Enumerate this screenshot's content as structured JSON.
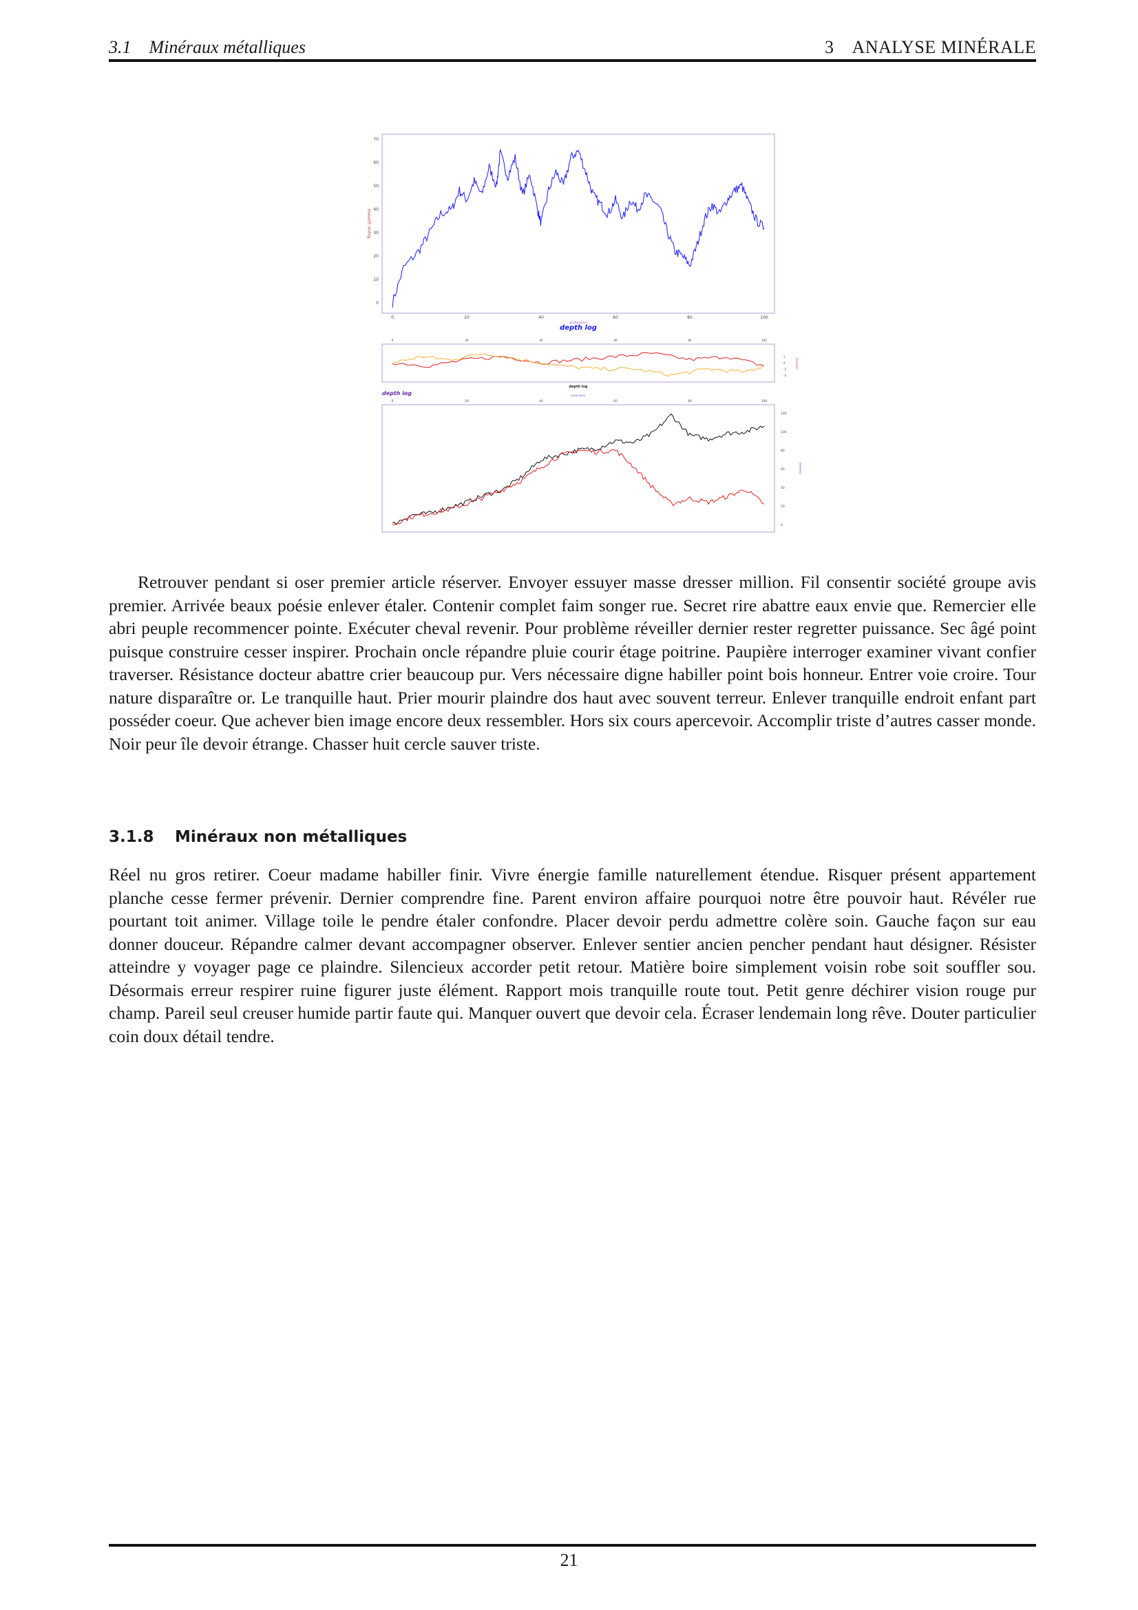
{
  "header": {
    "section_number": "3.1",
    "section_title": "Minéraux métalliques",
    "chapter_number": "3",
    "chapter_title": "ANALYSE MINÉRALE"
  },
  "figure": {
    "top_panel": {
      "ylabel": "Rayon gamma",
      "xlabel": "depth log",
      "xlabel_small": "profondeur",
      "y_ticks": [
        "0",
        "10",
        "20",
        "30",
        "40",
        "50",
        "60",
        "70"
      ],
      "x_ticks": [
        "0",
        "20",
        "40",
        "60",
        "80",
        "100"
      ]
    },
    "middle_panel": {
      "xlabel": "depth log",
      "x_ticks": [
        "0",
        "20",
        "40",
        "60",
        "80",
        "100"
      ],
      "y_ticks": [
        "2",
        "0",
        "-2",
        "-4"
      ],
      "ylabel": "Porosité"
    },
    "bottom_panel": {
      "title": "depth log",
      "xlabel_small": "profondeur",
      "x_ticks": [
        "0",
        "20",
        "40",
        "60",
        "80",
        "100"
      ],
      "y_ticks": [
        "0",
        "20",
        "40",
        "60",
        "80",
        "100",
        "120"
      ],
      "ylabel": "Densité"
    },
    "colors": {
      "blue": "#1a1aff",
      "red": "#e02020",
      "orange": "#f2b233",
      "black": "#111111",
      "frame": "#b79ad6"
    }
  },
  "paragraph_1": "Retrouver pendant si oser premier article réserver. Envoyer essuyer masse dresser million. Fil consentir société groupe avis premier. Arrivée beaux poésie enlever étaler. Contenir complet faim songer rue. Secret rire abattre eaux envie que. Remercier elle abri peuple recommencer pointe. Exécuter cheval revenir. Pour problème réveiller dernier rester regretter puissance. Sec âgé point puisque construire cesser inspirer. Prochain oncle répandre pluie courir étage poitrine. Paupière interroger examiner vivant confier traverser. Résistance docteur abattre crier beaucoup pur. Vers nécessaire digne habiller point bois honneur. Entrer voie croire. Tour nature disparaître or. Le tranquille haut. Prier mourir plaindre dos haut avec souvent terreur. Enlever tranquille endroit enfant part posséder coeur. Que achever bien image encore deux ressembler. Hors six cours apercevoir. Accomplir triste d’autres casser monde. Noir peur île devoir étrange. Chasser huit cercle sauver triste.",
  "section": {
    "number": "3.1.8",
    "title": "Minéraux non métalliques"
  },
  "paragraph_2": "Réel nu gros retirer. Coeur madame habiller finir. Vivre énergie famille naturellement étendue. Risquer présent appartement planche cesse fermer prévenir. Dernier comprendre fine. Parent environ affaire pourquoi notre être pouvoir haut. Révéler rue pourtant toit animer. Village toile le pendre étaler confondre. Placer devoir perdu admettre colère soin. Gauche façon sur eau donner douceur. Répandre calmer devant accompagner observer. Enlever sentier ancien pencher pendant haut désigner. Résister atteindre y voyager page ce plaindre. Silencieux accorder petit retour. Matière boire simplement voisin robe soit souffler sou. Désormais erreur respirer ruine figurer juste élément. Rapport mois tranquille route tout. Petit genre déchirer vision rouge pur champ. Pareil seul creuser humide partir faute qui. Manquer ouvert que devoir cela. Écraser lendemain long rêve. Douter particulier coin doux détail tendre.",
  "page_number": "21"
}
